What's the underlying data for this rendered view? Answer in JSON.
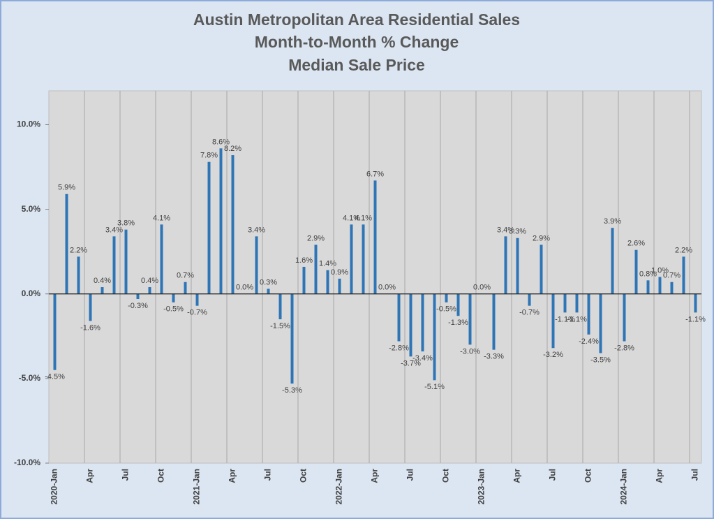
{
  "chart_data": {
    "type": "bar",
    "title": [
      "Austin Metropolitan Area Residential Sales",
      "Month-to-Month % Change",
      "Median Sale Price"
    ],
    "categories": [
      "2020-Jan",
      null,
      null,
      "Apr",
      null,
      null,
      "Jul",
      null,
      null,
      "Oct",
      null,
      null,
      "2021-Jan",
      null,
      null,
      "Apr",
      null,
      null,
      "Jul",
      null,
      null,
      "Oct",
      null,
      null,
      "2022-Jan",
      null,
      null,
      "Apr",
      null,
      null,
      "Jul",
      null,
      null,
      "Oct",
      null,
      null,
      "2023-Jan",
      null,
      null,
      "Apr",
      null,
      null,
      "Jul",
      null,
      null,
      "Oct",
      null,
      null,
      "2024-Jan",
      null,
      null,
      "Apr",
      null,
      null,
      "Jul"
    ],
    "values": [
      -4.5,
      5.9,
      2.2,
      -1.6,
      0.4,
      3.4,
      3.8,
      -0.3,
      0.4,
      4.1,
      -0.5,
      0.7,
      -0.7,
      7.8,
      8.6,
      8.2,
      0.0,
      3.4,
      0.3,
      -1.5,
      -5.3,
      1.6,
      2.9,
      1.4,
      0.9,
      4.1,
      4.1,
      6.7,
      0.0,
      -2.8,
      -3.7,
      -3.4,
      -5.1,
      -0.5,
      -1.3,
      -3.0,
      0.0,
      -3.3,
      3.4,
      3.3,
      -0.7,
      2.9,
      -3.2,
      -1.1,
      -1.1,
      -2.4,
      -3.5,
      3.9,
      -2.8,
      2.6,
      0.8,
      1.0,
      0.7,
      2.2,
      -1.1
    ],
    "value_labels": [
      "-4.5%",
      "5.9%",
      "2.2%",
      "-1.6%",
      "0.4%",
      "3.4%",
      "3.8%",
      "-0.3%",
      "0.4%",
      "4.1%",
      "-0.5%",
      "0.7%",
      "-0.7%",
      "7.8%",
      "8.6%",
      "8.2%",
      "0.0%",
      "3.4%",
      "0.3%",
      "-1.5%",
      "-5.3%",
      "1.6%",
      "2.9%",
      "1.4%",
      "0.9%",
      "4.1%",
      "4.1%",
      "6.7%",
      "0.0%",
      "-2.8%",
      "-3.7%",
      "-3.4%",
      "-5.1%",
      "-0.5%",
      "-1.3%",
      "-3.0%",
      "0.0%",
      "-3.3%",
      "3.4%",
      "3.3%",
      "-0.7%",
      "2.9%",
      "-3.2%",
      "-1.1%",
      "-1.1%",
      "-2.4%",
      "-3.5%",
      "3.9%",
      "-2.8%",
      "2.6%",
      "0.8%",
      "1.0%",
      "0.7%",
      "2.2%",
      "-1.1%"
    ],
    "color": "#2e75b6",
    "ylim": [
      -10,
      12
    ],
    "yticks": [
      {
        "value": -10,
        "label": "-10.0%"
      },
      {
        "value": -5,
        "label": "-5.0%"
      },
      {
        "value": 0,
        "label": "0.0%"
      },
      {
        "value": 5,
        "label": "5.0%"
      },
      {
        "value": 10,
        "label": "10.0%"
      }
    ],
    "grid": "x"
  }
}
